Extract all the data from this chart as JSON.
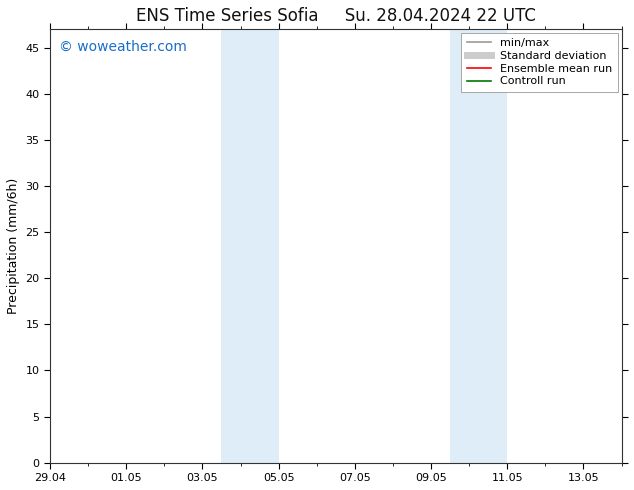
{
  "title_left": "ENS Time Series Sofia",
  "title_right": "Su. 28.04.2024 22 UTC",
  "ylabel": "Precipitation (mm/6h)",
  "watermark": "© woweather.com",
  "watermark_color": "#1a6ec7",
  "background_color": "#ffffff",
  "plot_bg_color": "#ffffff",
  "ylim": [
    0,
    47
  ],
  "yticks": [
    0,
    5,
    10,
    15,
    20,
    25,
    30,
    35,
    40,
    45
  ],
  "xlim": [
    0,
    15
  ],
  "xtick_labels": [
    "29.04",
    "01.05",
    "03.05",
    "05.05",
    "07.05",
    "09.05",
    "11.05",
    "13.05"
  ],
  "xtick_positions_days": [
    0,
    2,
    4,
    6,
    8,
    10,
    12,
    14
  ],
  "shade_bands": [
    {
      "xstart_day": 4.5,
      "xend_day": 6.0,
      "color": "#deedf8"
    },
    {
      "xstart_day": 10.5,
      "xend_day": 12.0,
      "color": "#deedf8"
    }
  ],
  "legend_entries": [
    {
      "label": "min/max",
      "color": "#999999",
      "lw": 1.2,
      "ls": "-"
    },
    {
      "label": "Standard deviation",
      "color": "#cccccc",
      "lw": 5,
      "ls": "-"
    },
    {
      "label": "Ensemble mean run",
      "color": "#ff0000",
      "lw": 1.2,
      "ls": "-"
    },
    {
      "label": "Controll run",
      "color": "#007700",
      "lw": 1.2,
      "ls": "-"
    }
  ],
  "title_fontsize": 12,
  "axis_label_fontsize": 9,
  "tick_fontsize": 8,
  "legend_fontsize": 8,
  "watermark_fontsize": 10
}
